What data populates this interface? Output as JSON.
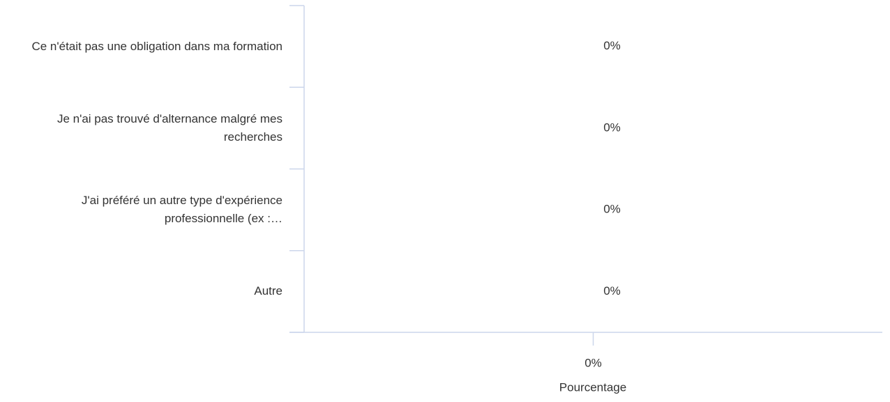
{
  "chart_data": {
    "type": "bar",
    "orientation": "horizontal",
    "categories": [
      "Ce n'était pas une obligation dans ma formation",
      "Je n'ai pas trouvé d'alternance malgré mes recherches",
      "J'ai préféré un autre type d'expérience professionnelle (ex :…",
      "Autre"
    ],
    "values": [
      0,
      0,
      0,
      0
    ],
    "value_labels": [
      "0%",
      "0%",
      "0%",
      "0%"
    ],
    "color": "#2caffe",
    "xlim": [
      -1,
      1
    ],
    "xticks": [
      {
        "value": 0,
        "label": "0%"
      }
    ],
    "x_label": "Pourcentage",
    "grid": false
  }
}
